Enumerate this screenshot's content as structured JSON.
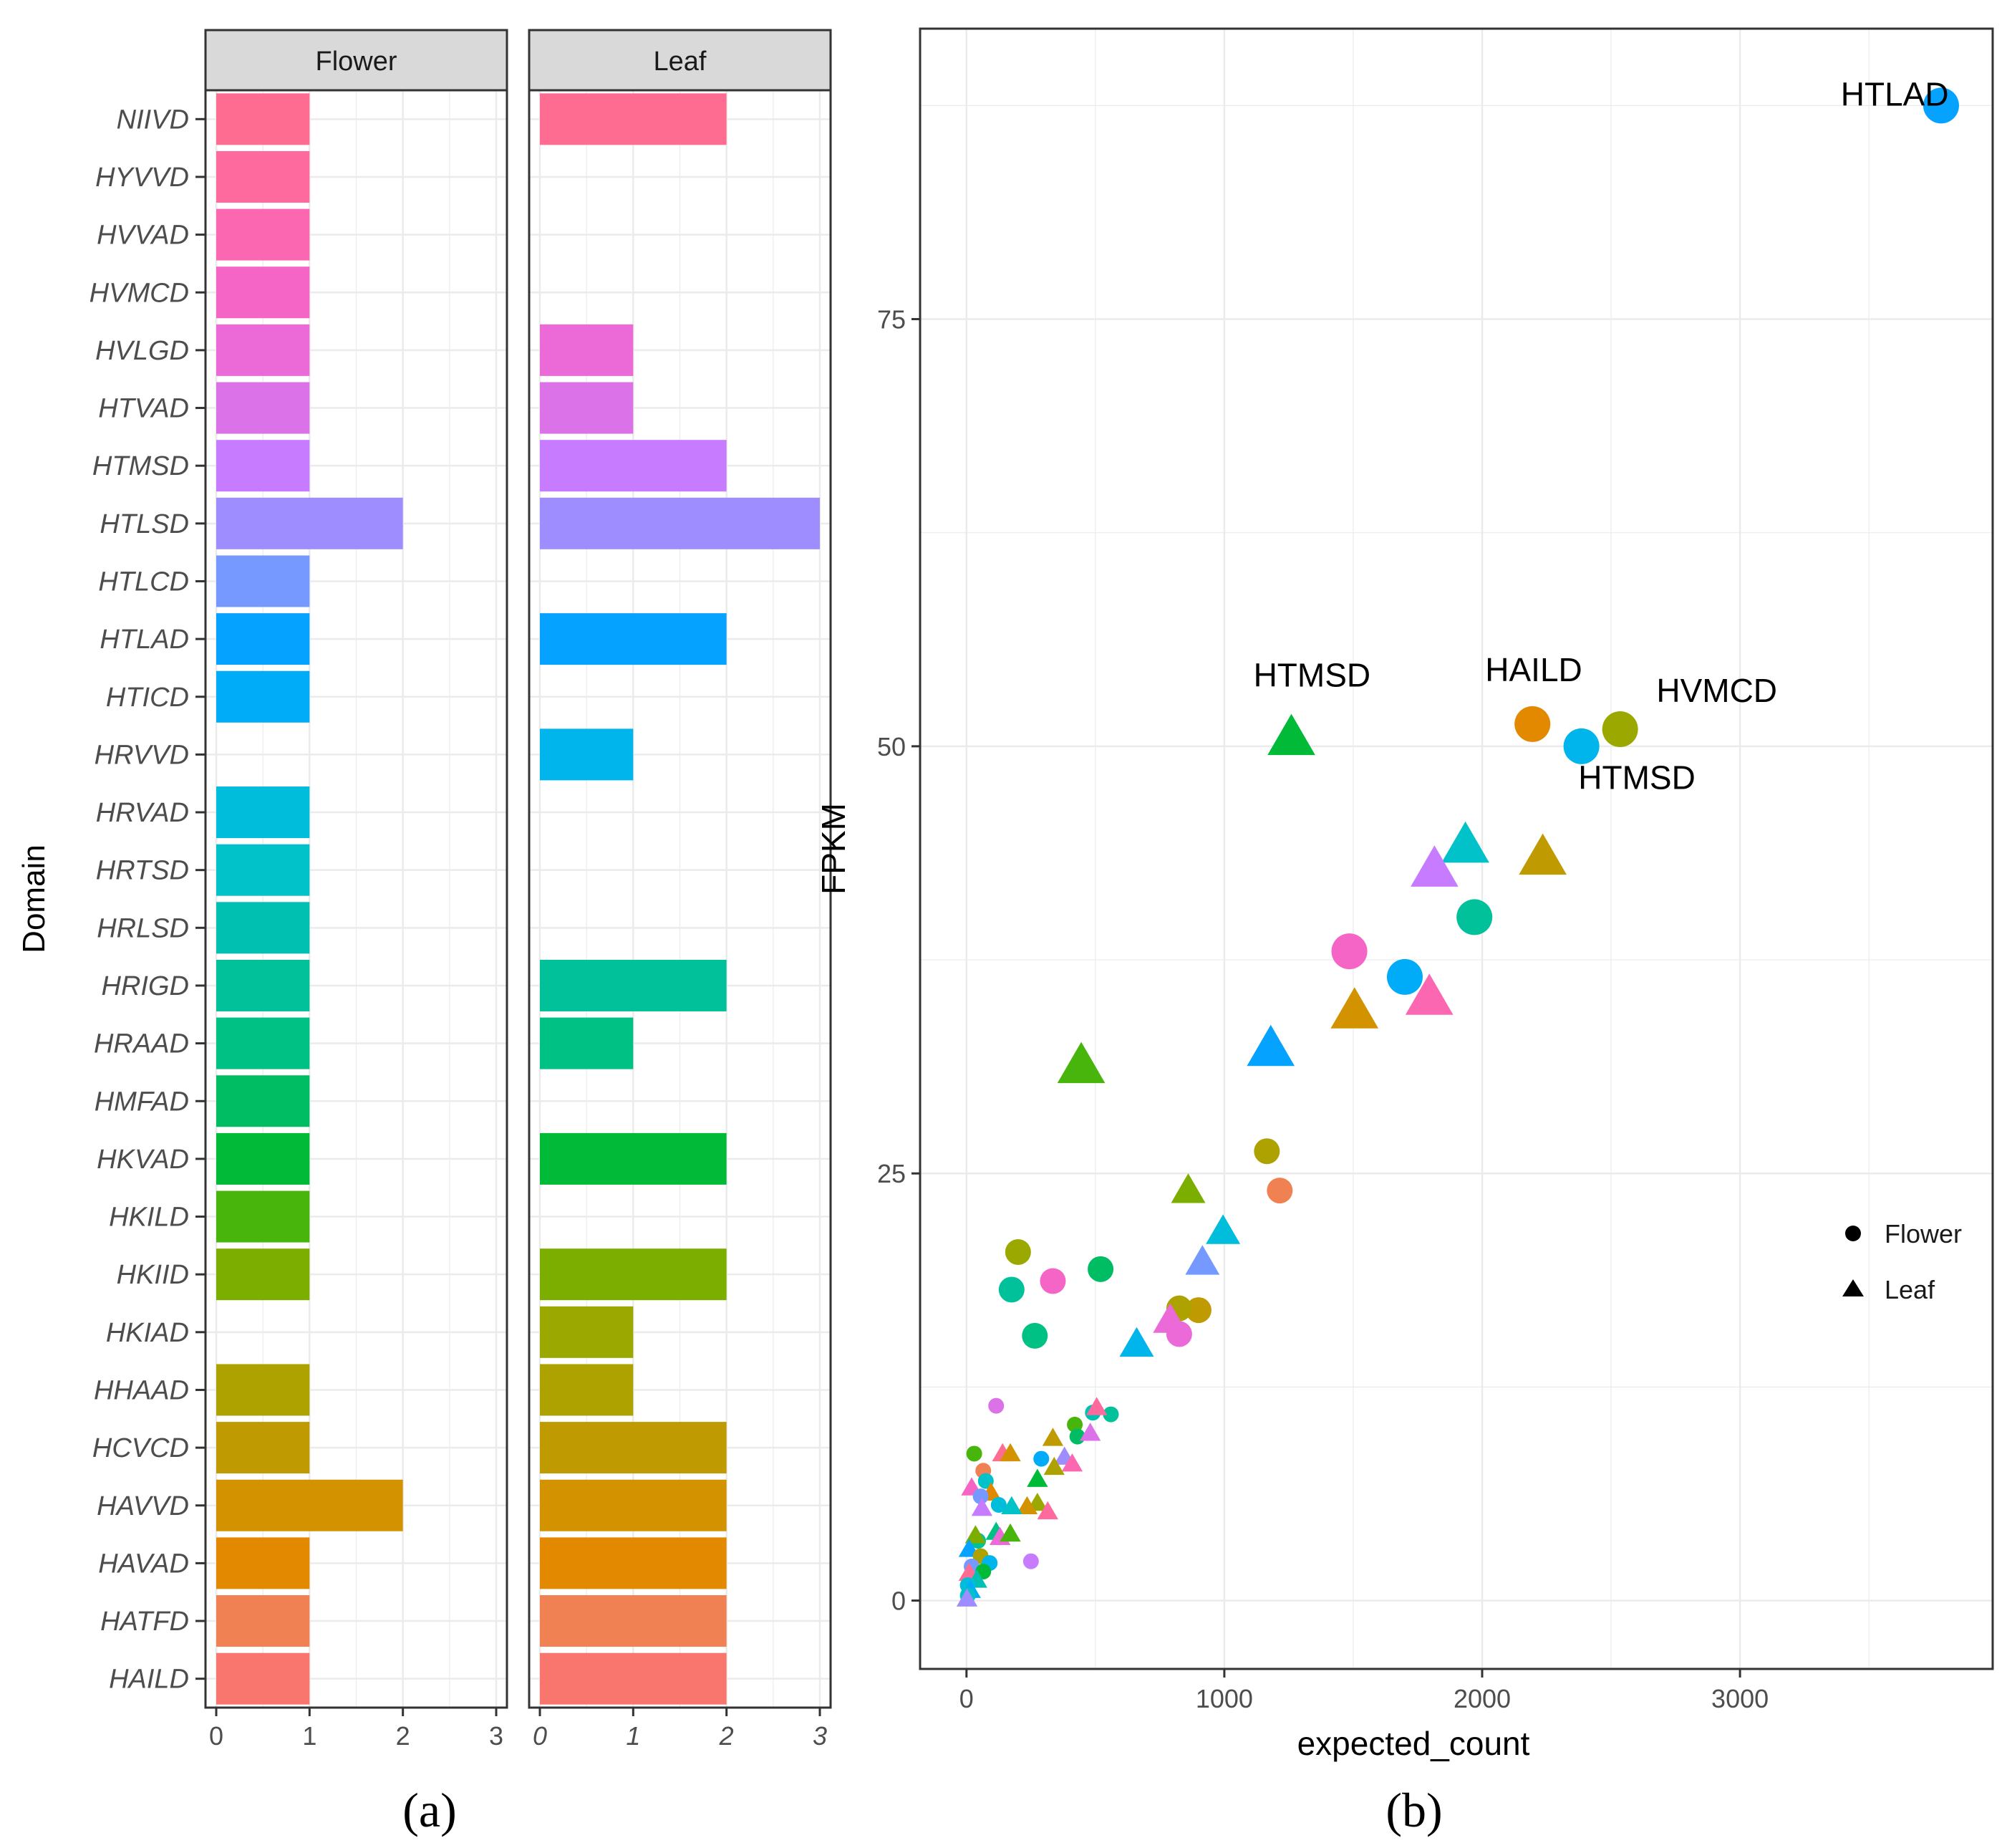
{
  "panel_labels": {
    "a": "(a)",
    "b": "(b)"
  },
  "chart_data": [
    {
      "type": "bar",
      "orientation": "horizontal",
      "facets": [
        "Flower",
        "Leaf"
      ],
      "ylabel": "Domain",
      "xlim": [
        0,
        3
      ],
      "xticks": [
        0,
        1,
        2,
        3
      ],
      "categories": [
        "NIIVD",
        "HYVVD",
        "HVVAD",
        "HVMCD",
        "HVLGD",
        "HTVAD",
        "HTMSD",
        "HTLSD",
        "HTLCD",
        "HTLAD",
        "HTICD",
        "HRVVD",
        "HRVAD",
        "HRTSD",
        "HRLSD",
        "HRIGD",
        "HRAAD",
        "HMFAD",
        "HKVAD",
        "HKILD",
        "HKIID",
        "HKIAD",
        "HHAAD",
        "HCVCD",
        "HAVVD",
        "HAVAD",
        "HATFD",
        "HAILD"
      ],
      "colors": [
        "#FF6C91",
        "#FF6A9E",
        "#FC67B2",
        "#F565C5",
        "#EC6AD8",
        "#DC72E8",
        "#C77CFF",
        "#9E8DFF",
        "#7699FF",
        "#05A2FF",
        "#00ABF8",
        "#00B5EB",
        "#00BEDB",
        "#00C2C8",
        "#00C1B1",
        "#00C19A",
        "#00C184",
        "#00BD63",
        "#00BA38",
        "#48B50C",
        "#7CAE00",
        "#9AA800",
        "#ADA200",
        "#BF9A00",
        "#D39300",
        "#E38900",
        "#F08153",
        "#F8766D"
      ],
      "series": [
        {
          "name": "Flower",
          "values": [
            1,
            1,
            1,
            1,
            1,
            1,
            1,
            2,
            1,
            1,
            1,
            0,
            1,
            1,
            1,
            1,
            1,
            1,
            1,
            1,
            1,
            0,
            1,
            1,
            2,
            1,
            1,
            1
          ]
        },
        {
          "name": "Leaf",
          "values": [
            2,
            0,
            0,
            0,
            1,
            1,
            2,
            3,
            0,
            2,
            0,
            1,
            0,
            0,
            0,
            2,
            1,
            0,
            2,
            0,
            2,
            1,
            1,
            2,
            2,
            2,
            2,
            2
          ]
        }
      ]
    },
    {
      "type": "scatter",
      "xlabel": "expected_count",
      "ylabel": "FPKM",
      "xlim": [
        -180,
        3980
      ],
      "ylim": [
        -4,
        92
      ],
      "xticks": [
        0,
        1000,
        2000,
        3000
      ],
      "yticks": [
        0,
        25,
        50,
        75
      ],
      "legend": {
        "placement": "right",
        "entries": [
          {
            "label": "Flower",
            "shape": "circle"
          },
          {
            "label": "Leaf",
            "shape": "triangle"
          }
        ]
      },
      "annotations": [
        {
          "text": "HTLAD",
          "x": 3600,
          "y": 87.5
        },
        {
          "text": "HTMSD",
          "x": 1340,
          "y": 53.5
        },
        {
          "text": "HAILD",
          "x": 2200,
          "y": 53.8
        },
        {
          "text": "HVMCD",
          "x": 2910,
          "y": 52.6
        },
        {
          "text": "HTMSD",
          "x": 2600,
          "y": 47.5
        }
      ],
      "points": [
        {
          "x": 3780,
          "y": 87.5,
          "shape": "circle",
          "size": 3,
          "color": "#05A2FF"
        },
        {
          "x": 1260,
          "y": 50.5,
          "shape": "triangle",
          "size": 3,
          "color": "#00BA38"
        },
        {
          "x": 2195,
          "y": 51.3,
          "shape": "circle",
          "size": 3,
          "color": "#E38900"
        },
        {
          "x": 2535,
          "y": 51.0,
          "shape": "circle",
          "size": 3,
          "color": "#9AA800"
        },
        {
          "x": 2385,
          "y": 50.0,
          "shape": "circle",
          "size": 3,
          "color": "#00B5EB"
        },
        {
          "x": 1935,
          "y": 44.2,
          "shape": "triangle",
          "size": 3,
          "color": "#00C2C8"
        },
        {
          "x": 1815,
          "y": 42.8,
          "shape": "triangle",
          "size": 3,
          "color": "#C77CFF"
        },
        {
          "x": 2235,
          "y": 43.5,
          "shape": "triangle",
          "size": 3,
          "color": "#BF9A00"
        },
        {
          "x": 1970,
          "y": 40.0,
          "shape": "circle",
          "size": 3,
          "color": "#00C19A"
        },
        {
          "x": 1485,
          "y": 38.0,
          "shape": "circle",
          "size": 3,
          "color": "#F565C5"
        },
        {
          "x": 1700,
          "y": 36.5,
          "shape": "circle",
          "size": 3,
          "color": "#00ABF8"
        },
        {
          "x": 1795,
          "y": 35.3,
          "shape": "triangle",
          "size": 3,
          "color": "#FC67B2"
        },
        {
          "x": 1505,
          "y": 34.5,
          "shape": "triangle",
          "size": 3,
          "color": "#D39300"
        },
        {
          "x": 1180,
          "y": 32.3,
          "shape": "triangle",
          "size": 3,
          "color": "#05A2FF"
        },
        {
          "x": 445,
          "y": 31.3,
          "shape": "triangle",
          "size": 3,
          "color": "#48B50C"
        },
        {
          "x": 1165,
          "y": 26.3,
          "shape": "circle",
          "size": 2,
          "color": "#ADA200"
        },
        {
          "x": 1215,
          "y": 24.0,
          "shape": "circle",
          "size": 2,
          "color": "#F08153"
        },
        {
          "x": 860,
          "y": 24.0,
          "shape": "triangle",
          "size": 2,
          "color": "#7CAE00"
        },
        {
          "x": 995,
          "y": 21.6,
          "shape": "triangle",
          "size": 2,
          "color": "#00BEDB"
        },
        {
          "x": 200,
          "y": 20.4,
          "shape": "circle",
          "size": 2,
          "color": "#9AA800"
        },
        {
          "x": 520,
          "y": 19.4,
          "shape": "circle",
          "size": 2,
          "color": "#00BD63"
        },
        {
          "x": 915,
          "y": 19.8,
          "shape": "triangle",
          "size": 2,
          "color": "#7699FF"
        },
        {
          "x": 335,
          "y": 18.7,
          "shape": "circle",
          "size": 2,
          "color": "#F565C5"
        },
        {
          "x": 175,
          "y": 18.2,
          "shape": "circle",
          "size": 2,
          "color": "#00C19A"
        },
        {
          "x": 900,
          "y": 17.0,
          "shape": "circle",
          "size": 2,
          "color": "#BF9A00"
        },
        {
          "x": 825,
          "y": 17.1,
          "shape": "circle",
          "size": 2,
          "color": "#ADA200"
        },
        {
          "x": 790,
          "y": 16.4,
          "shape": "triangle",
          "size": 2,
          "color": "#EC6AD8"
        },
        {
          "x": 825,
          "y": 15.6,
          "shape": "circle",
          "size": 2,
          "color": "#EC6AD8"
        },
        {
          "x": 265,
          "y": 15.5,
          "shape": "circle",
          "size": 2,
          "color": "#00C184"
        },
        {
          "x": 660,
          "y": 15.0,
          "shape": "triangle",
          "size": 2,
          "color": "#00B5EB"
        },
        {
          "x": 115,
          "y": 11.4,
          "shape": "circle",
          "size": 1,
          "color": "#DC72E8"
        },
        {
          "x": 490,
          "y": 11.0,
          "shape": "circle",
          "size": 1,
          "color": "#00C1B1"
        },
        {
          "x": 560,
          "y": 10.9,
          "shape": "circle",
          "size": 1,
          "color": "#00C19A"
        },
        {
          "x": 505,
          "y": 11.3,
          "shape": "triangle",
          "size": 1,
          "color": "#FF6A9E"
        },
        {
          "x": 420,
          "y": 10.3,
          "shape": "circle",
          "size": 1,
          "color": "#48B50C"
        },
        {
          "x": 430,
          "y": 9.6,
          "shape": "circle",
          "size": 1,
          "color": "#00BD63"
        },
        {
          "x": 480,
          "y": 9.8,
          "shape": "triangle",
          "size": 1,
          "color": "#DC72E8"
        },
        {
          "x": 335,
          "y": 9.5,
          "shape": "triangle",
          "size": 1,
          "color": "#BF9A00"
        },
        {
          "x": 30,
          "y": 8.6,
          "shape": "circle",
          "size": 1,
          "color": "#48B50C"
        },
        {
          "x": 140,
          "y": 8.6,
          "shape": "triangle",
          "size": 1,
          "color": "#FF6C91"
        },
        {
          "x": 170,
          "y": 8.6,
          "shape": "triangle",
          "size": 1,
          "color": "#D39300"
        },
        {
          "x": 290,
          "y": 8.3,
          "shape": "circle",
          "size": 1,
          "color": "#00ABF8"
        },
        {
          "x": 380,
          "y": 8.4,
          "shape": "triangle",
          "size": 1,
          "color": "#9E8DFF"
        },
        {
          "x": 410,
          "y": 8.0,
          "shape": "triangle",
          "size": 1,
          "color": "#FC67B2"
        },
        {
          "x": 340,
          "y": 7.8,
          "shape": "triangle",
          "size": 1,
          "color": "#ADA200"
        },
        {
          "x": 65,
          "y": 7.6,
          "shape": "circle",
          "size": 1,
          "color": "#F08153"
        },
        {
          "x": 75,
          "y": 7.0,
          "shape": "circle",
          "size": 1,
          "color": "#00C2C8"
        },
        {
          "x": 275,
          "y": 7.1,
          "shape": "triangle",
          "size": 1,
          "color": "#00BA38"
        },
        {
          "x": 20,
          "y": 6.6,
          "shape": "triangle",
          "size": 1,
          "color": "#F565C5"
        },
        {
          "x": 95,
          "y": 6.3,
          "shape": "triangle",
          "size": 1,
          "color": "#E38900"
        },
        {
          "x": 55,
          "y": 6.1,
          "shape": "circle",
          "size": 1,
          "color": "#7699FF"
        },
        {
          "x": 275,
          "y": 5.7,
          "shape": "triangle",
          "size": 1,
          "color": "#9AA800"
        },
        {
          "x": 235,
          "y": 5.5,
          "shape": "triangle",
          "size": 1,
          "color": "#D39300"
        },
        {
          "x": 125,
          "y": 5.6,
          "shape": "circle",
          "size": 1,
          "color": "#00BEDB"
        },
        {
          "x": 175,
          "y": 5.5,
          "shape": "triangle",
          "size": 1,
          "color": "#00C2C8"
        },
        {
          "x": 60,
          "y": 5.4,
          "shape": "triangle",
          "size": 1,
          "color": "#C77CFF"
        },
        {
          "x": 315,
          "y": 5.2,
          "shape": "triangle",
          "size": 1,
          "color": "#FF6A9E"
        },
        {
          "x": 115,
          "y": 4.0,
          "shape": "triangle",
          "size": 1,
          "color": "#00C184"
        },
        {
          "x": 130,
          "y": 3.7,
          "shape": "triangle",
          "size": 1,
          "color": "#EC6AD8"
        },
        {
          "x": 170,
          "y": 3.9,
          "shape": "triangle",
          "size": 1,
          "color": "#48B50C"
        },
        {
          "x": 45,
          "y": 3.5,
          "shape": "circle",
          "size": 1,
          "color": "#00C19A"
        },
        {
          "x": 35,
          "y": 3.8,
          "shape": "triangle",
          "size": 1,
          "color": "#7CAE00"
        },
        {
          "x": 10,
          "y": 3.0,
          "shape": "triangle",
          "size": 1,
          "color": "#05A2FF"
        },
        {
          "x": 55,
          "y": 2.6,
          "shape": "circle",
          "size": 1,
          "color": "#ADA200"
        },
        {
          "x": 90,
          "y": 2.2,
          "shape": "circle",
          "size": 1,
          "color": "#00B5EB"
        },
        {
          "x": 250,
          "y": 2.3,
          "shape": "circle",
          "size": 1,
          "color": "#C77CFF"
        },
        {
          "x": 20,
          "y": 2.0,
          "shape": "circle",
          "size": 1,
          "color": "#7699FF"
        },
        {
          "x": 65,
          "y": 1.7,
          "shape": "circle",
          "size": 1,
          "color": "#00BA38"
        },
        {
          "x": 10,
          "y": 1.6,
          "shape": "triangle",
          "size": 1,
          "color": "#FF6C91"
        },
        {
          "x": 40,
          "y": 1.2,
          "shape": "triangle",
          "size": 1,
          "color": "#00C1B1"
        },
        {
          "x": 5,
          "y": 0.9,
          "shape": "circle",
          "size": 1,
          "color": "#00BEDB"
        },
        {
          "x": 15,
          "y": 0.6,
          "shape": "triangle",
          "size": 1,
          "color": "#00ABF8"
        },
        {
          "x": 5,
          "y": 0.3,
          "shape": "circle",
          "size": 1,
          "color": "#00C2C8"
        },
        {
          "x": 2,
          "y": 0.1,
          "shape": "triangle",
          "size": 1,
          "color": "#9E8DFF"
        }
      ]
    }
  ]
}
